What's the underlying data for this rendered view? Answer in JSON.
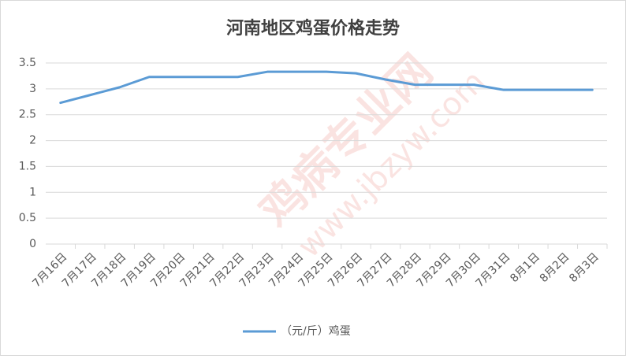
{
  "chart_data": {
    "type": "line",
    "title": "河南地区鸡蛋价格走势",
    "categories": [
      "7月16日",
      "7月17日",
      "7月18日",
      "7月19日",
      "7月20日",
      "7月21日",
      "7月22日",
      "7月23日",
      "7月24日",
      "7月25日",
      "7月26日",
      "7月27日",
      "7月28日",
      "7月29日",
      "7月30日",
      "7月31日",
      "8月1日",
      "8月2日",
      "8月3日"
    ],
    "series": [
      {
        "name": "（元/斤）鸡蛋",
        "color": "#5b9bd5",
        "values": [
          2.73,
          2.88,
          3.03,
          3.23,
          3.23,
          3.23,
          3.23,
          3.33,
          3.33,
          3.33,
          3.3,
          3.18,
          3.08,
          3.08,
          3.08,
          2.98,
          2.98,
          2.98,
          2.98
        ]
      }
    ],
    "ylim": [
      0,
      3.5
    ],
    "yticks": [
      0,
      0.5,
      1,
      1.5,
      2,
      2.5,
      3,
      3.5
    ],
    "grid": true,
    "legend": "bottom",
    "watermark": [
      "鸡病专业网",
      "www.jbzyw.com"
    ]
  }
}
